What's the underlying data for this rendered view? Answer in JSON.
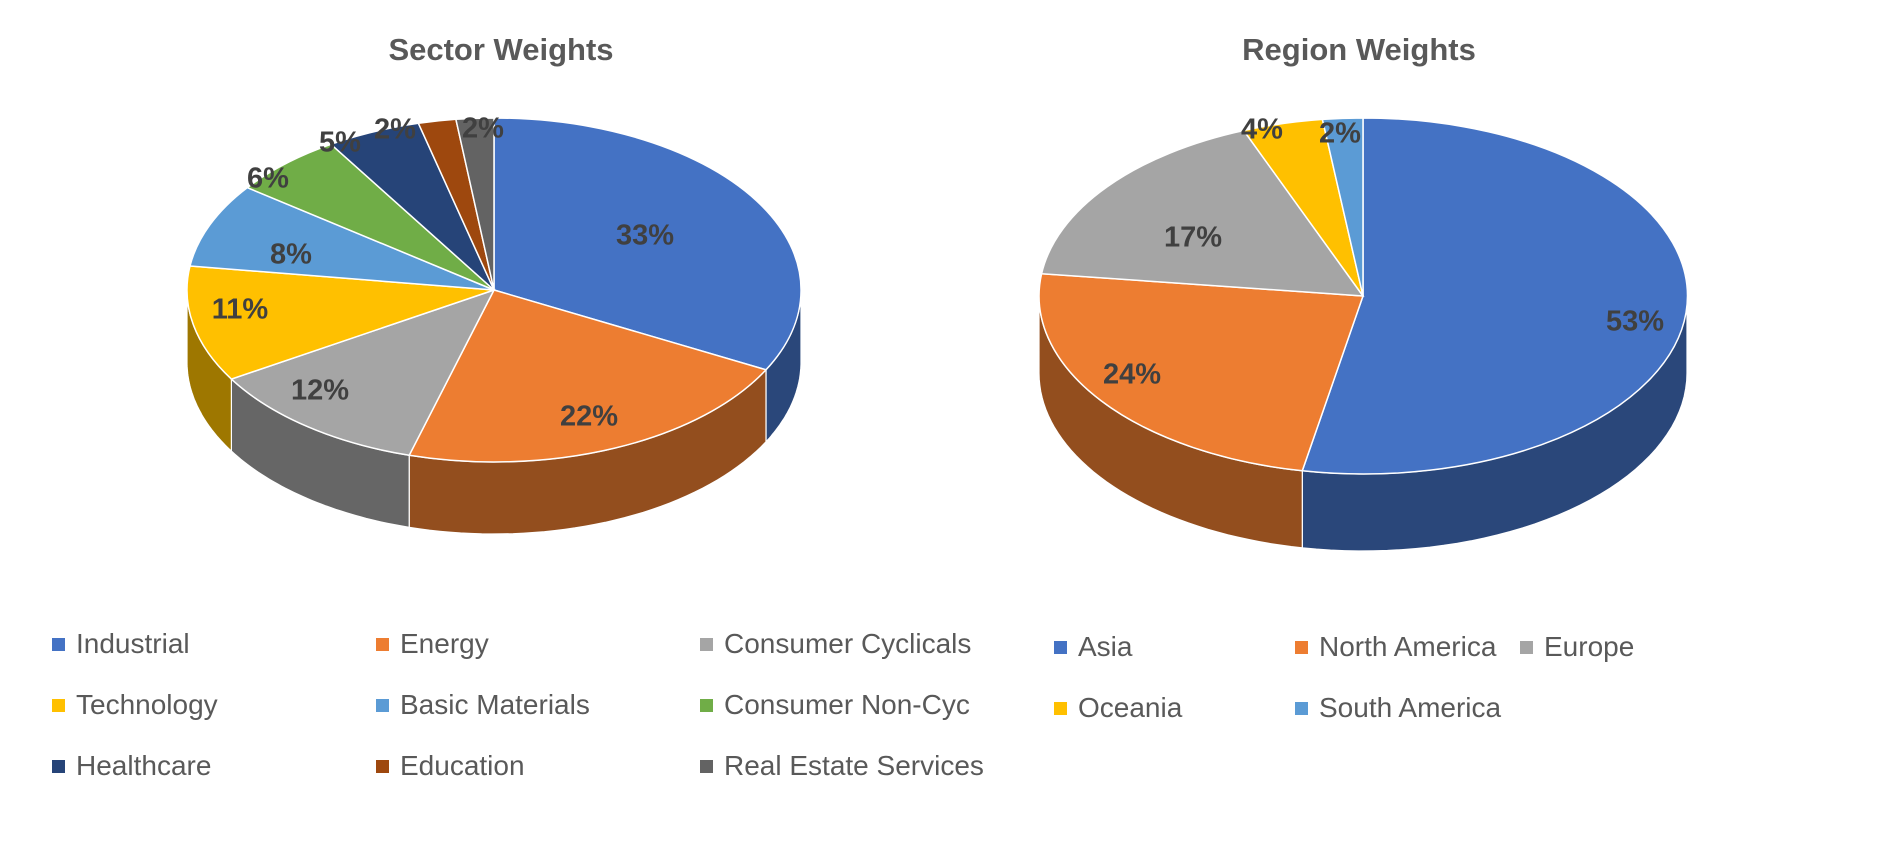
{
  "chart_data": [
    {
      "type": "pie",
      "title": "Sector Weights",
      "categories": [
        "Industrial",
        "Energy",
        "Consumer Cyclicals",
        "Technology",
        "Basic Materials",
        "Consumer Non-Cyc",
        "Healthcare",
        "Education",
        "Real Estate Services"
      ],
      "values": [
        33,
        22,
        12,
        11,
        8,
        6,
        5,
        2,
        2
      ],
      "labels": [
        "33%",
        "22%",
        "12%",
        "11%",
        "8%",
        "6%",
        "5%",
        "2%",
        "2%"
      ],
      "colors": [
        "#4472C4",
        "#ED7D31",
        "#A5A5A5",
        "#FFC000",
        "#5B9BD5",
        "#70AD47",
        "#264478",
        "#9E480E",
        "#636363"
      ],
      "legend_position": "bottom",
      "style": "3d"
    },
    {
      "type": "pie",
      "title": "Region Weights",
      "categories": [
        "Asia",
        "North America",
        "Europe",
        "Oceania",
        "South America"
      ],
      "values": [
        53,
        24,
        17,
        4,
        2
      ],
      "labels": [
        "53%",
        "24%",
        "17%",
        "4%",
        "2%"
      ],
      "colors": [
        "#4472C4",
        "#ED7D31",
        "#A5A5A5",
        "#FFC000",
        "#5B9BD5"
      ],
      "legend_position": "bottom",
      "style": "3d"
    }
  ]
}
